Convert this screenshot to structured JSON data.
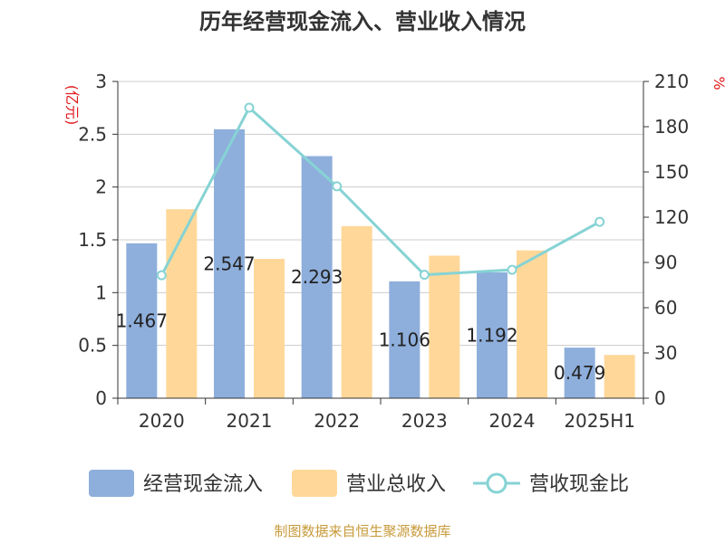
{
  "chart_data": {
    "type": "bar",
    "title": "历年经营现金流入、营业收入情况",
    "categories": [
      "2020",
      "2021",
      "2022",
      "2023",
      "2024",
      "2025H1"
    ],
    "series": [
      {
        "name": "经营现金流入",
        "type": "bar",
        "axis": "left",
        "values": [
          1.467,
          2.547,
          2.293,
          1.106,
          1.192,
          0.479
        ],
        "labels": [
          "1.467",
          "2.547",
          "2.293",
          "1.106",
          "1.192",
          "0.479"
        ],
        "color": "#8eafdc"
      },
      {
        "name": "营业总收入",
        "type": "bar",
        "axis": "left",
        "values": [
          1.79,
          1.32,
          1.63,
          1.35,
          1.4,
          0.41
        ],
        "color": "#ffd899"
      },
      {
        "name": "营收现金比",
        "type": "line",
        "axis": "right",
        "values": [
          81.5,
          192.6,
          140.5,
          81.8,
          85.1,
          116.9
        ],
        "color": "#86d3d4"
      }
    ],
    "y_left": {
      "label": "(亿元)",
      "min": 0,
      "max": 3,
      "ticks": [
        "0",
        "0.5",
        "1",
        "1.5",
        "2",
        "2.5",
        "3"
      ]
    },
    "y_right": {
      "label": "%",
      "min": 0,
      "max": 210,
      "ticks": [
        "0",
        "30",
        "60",
        "90",
        "120",
        "150",
        "180",
        "210"
      ]
    },
    "grid": true,
    "legend_position": "bottom",
    "source": "制图数据来自恒生聚源数据库"
  }
}
